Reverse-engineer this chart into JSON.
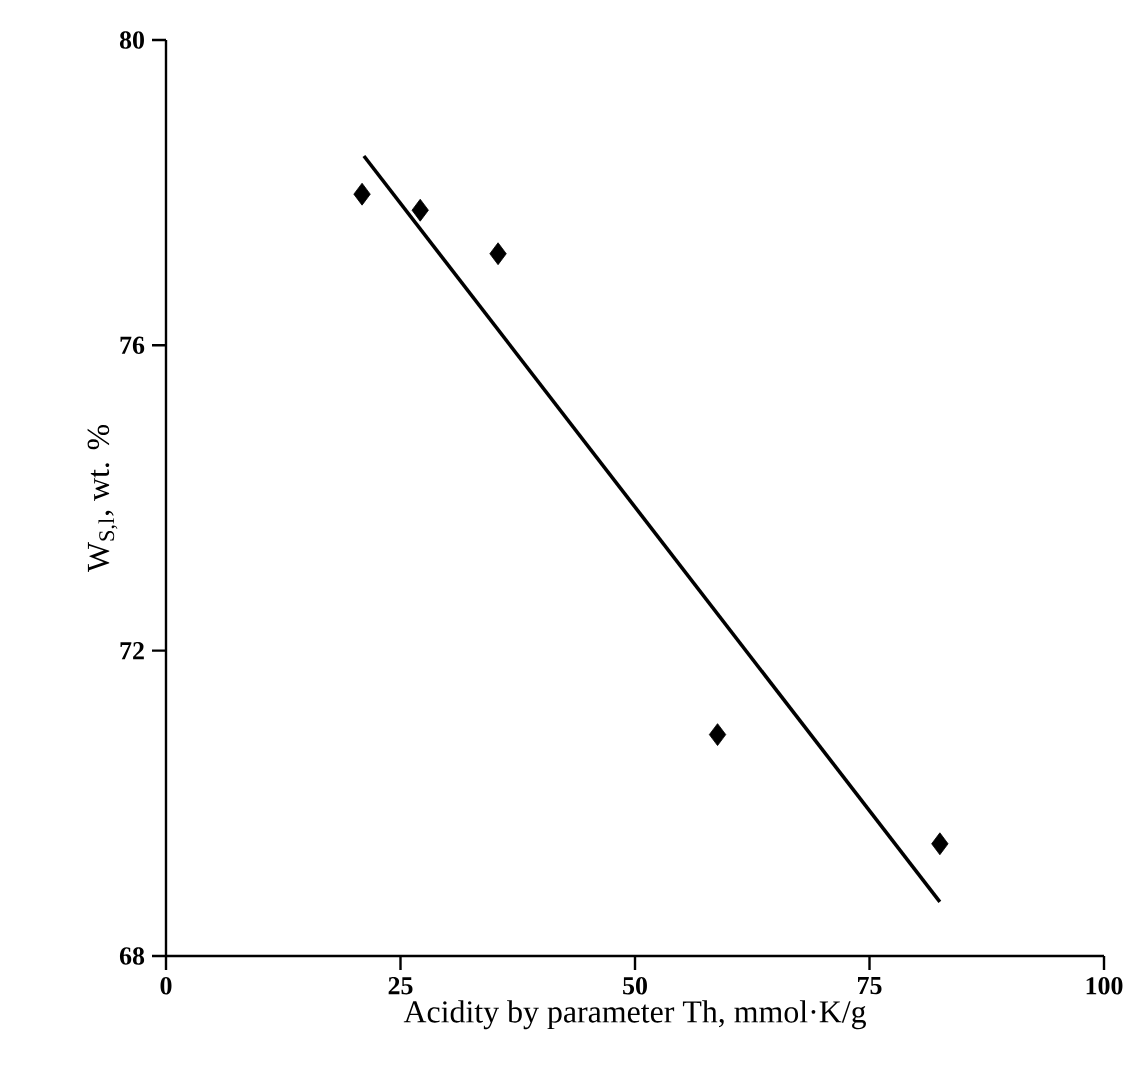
{
  "chart_data": {
    "type": "scatter",
    "xlabel": "Acidity by parameter Th, mmol·K/g",
    "ylabel": "W$_{S,l}$, wt. %",
    "xlim": [
      0,
      100
    ],
    "xticks": [
      0,
      25,
      50,
      75,
      100
    ],
    "ylim": [
      68,
      80
    ],
    "yticks": [
      68,
      72,
      76,
      80
    ],
    "grid": false,
    "series": [
      {
        "color": "#000000",
        "marker": "diamond",
        "x": [
          20.9,
          27.1,
          35.4,
          58.8,
          82.5
        ],
        "values": [
          77.98,
          77.77,
          77.2,
          70.9,
          69.47
        ]
      },
      {
        "type": "line",
        "color": "#000000",
        "marker": "none",
        "line_style": "solid",
        "x": [
          21.1,
          82.5
        ],
        "values": [
          78.48,
          68.71
        ]
      }
    ]
  }
}
